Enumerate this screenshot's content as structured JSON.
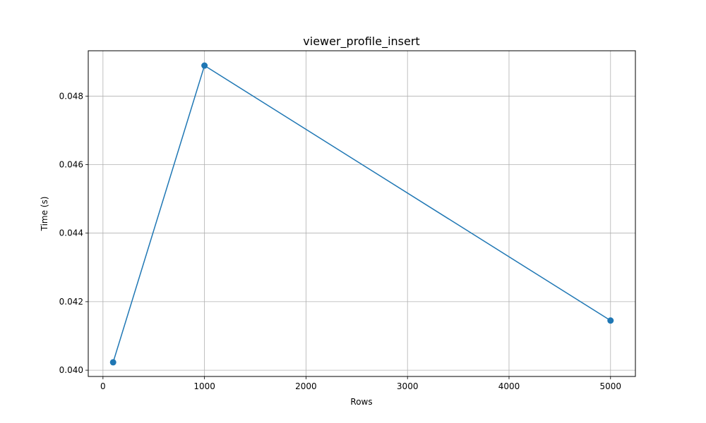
{
  "chart_data": {
    "type": "line",
    "title": "viewer_profile_insert",
    "xlabel": "Rows",
    "ylabel": "Time (s)",
    "x": [
      100,
      1000,
      5000
    ],
    "series": [
      {
        "values": [
          0.04023,
          0.04889,
          0.04145
        ],
        "color": "#1f77b4",
        "marker": "circle"
      }
    ],
    "xlim": [
      -145,
      5245
    ],
    "ylim": [
      0.039817,
      0.049323
    ],
    "xticks": [
      0,
      1000,
      2000,
      3000,
      4000,
      5000
    ],
    "xtick_labels": [
      "0",
      "1000",
      "2000",
      "3000",
      "4000",
      "5000"
    ],
    "yticks": [
      0.04,
      0.042,
      0.044,
      0.046,
      0.048
    ],
    "ytick_labels": [
      "0.040",
      "0.042",
      "0.044",
      "0.046",
      "0.048"
    ],
    "grid": true
  }
}
